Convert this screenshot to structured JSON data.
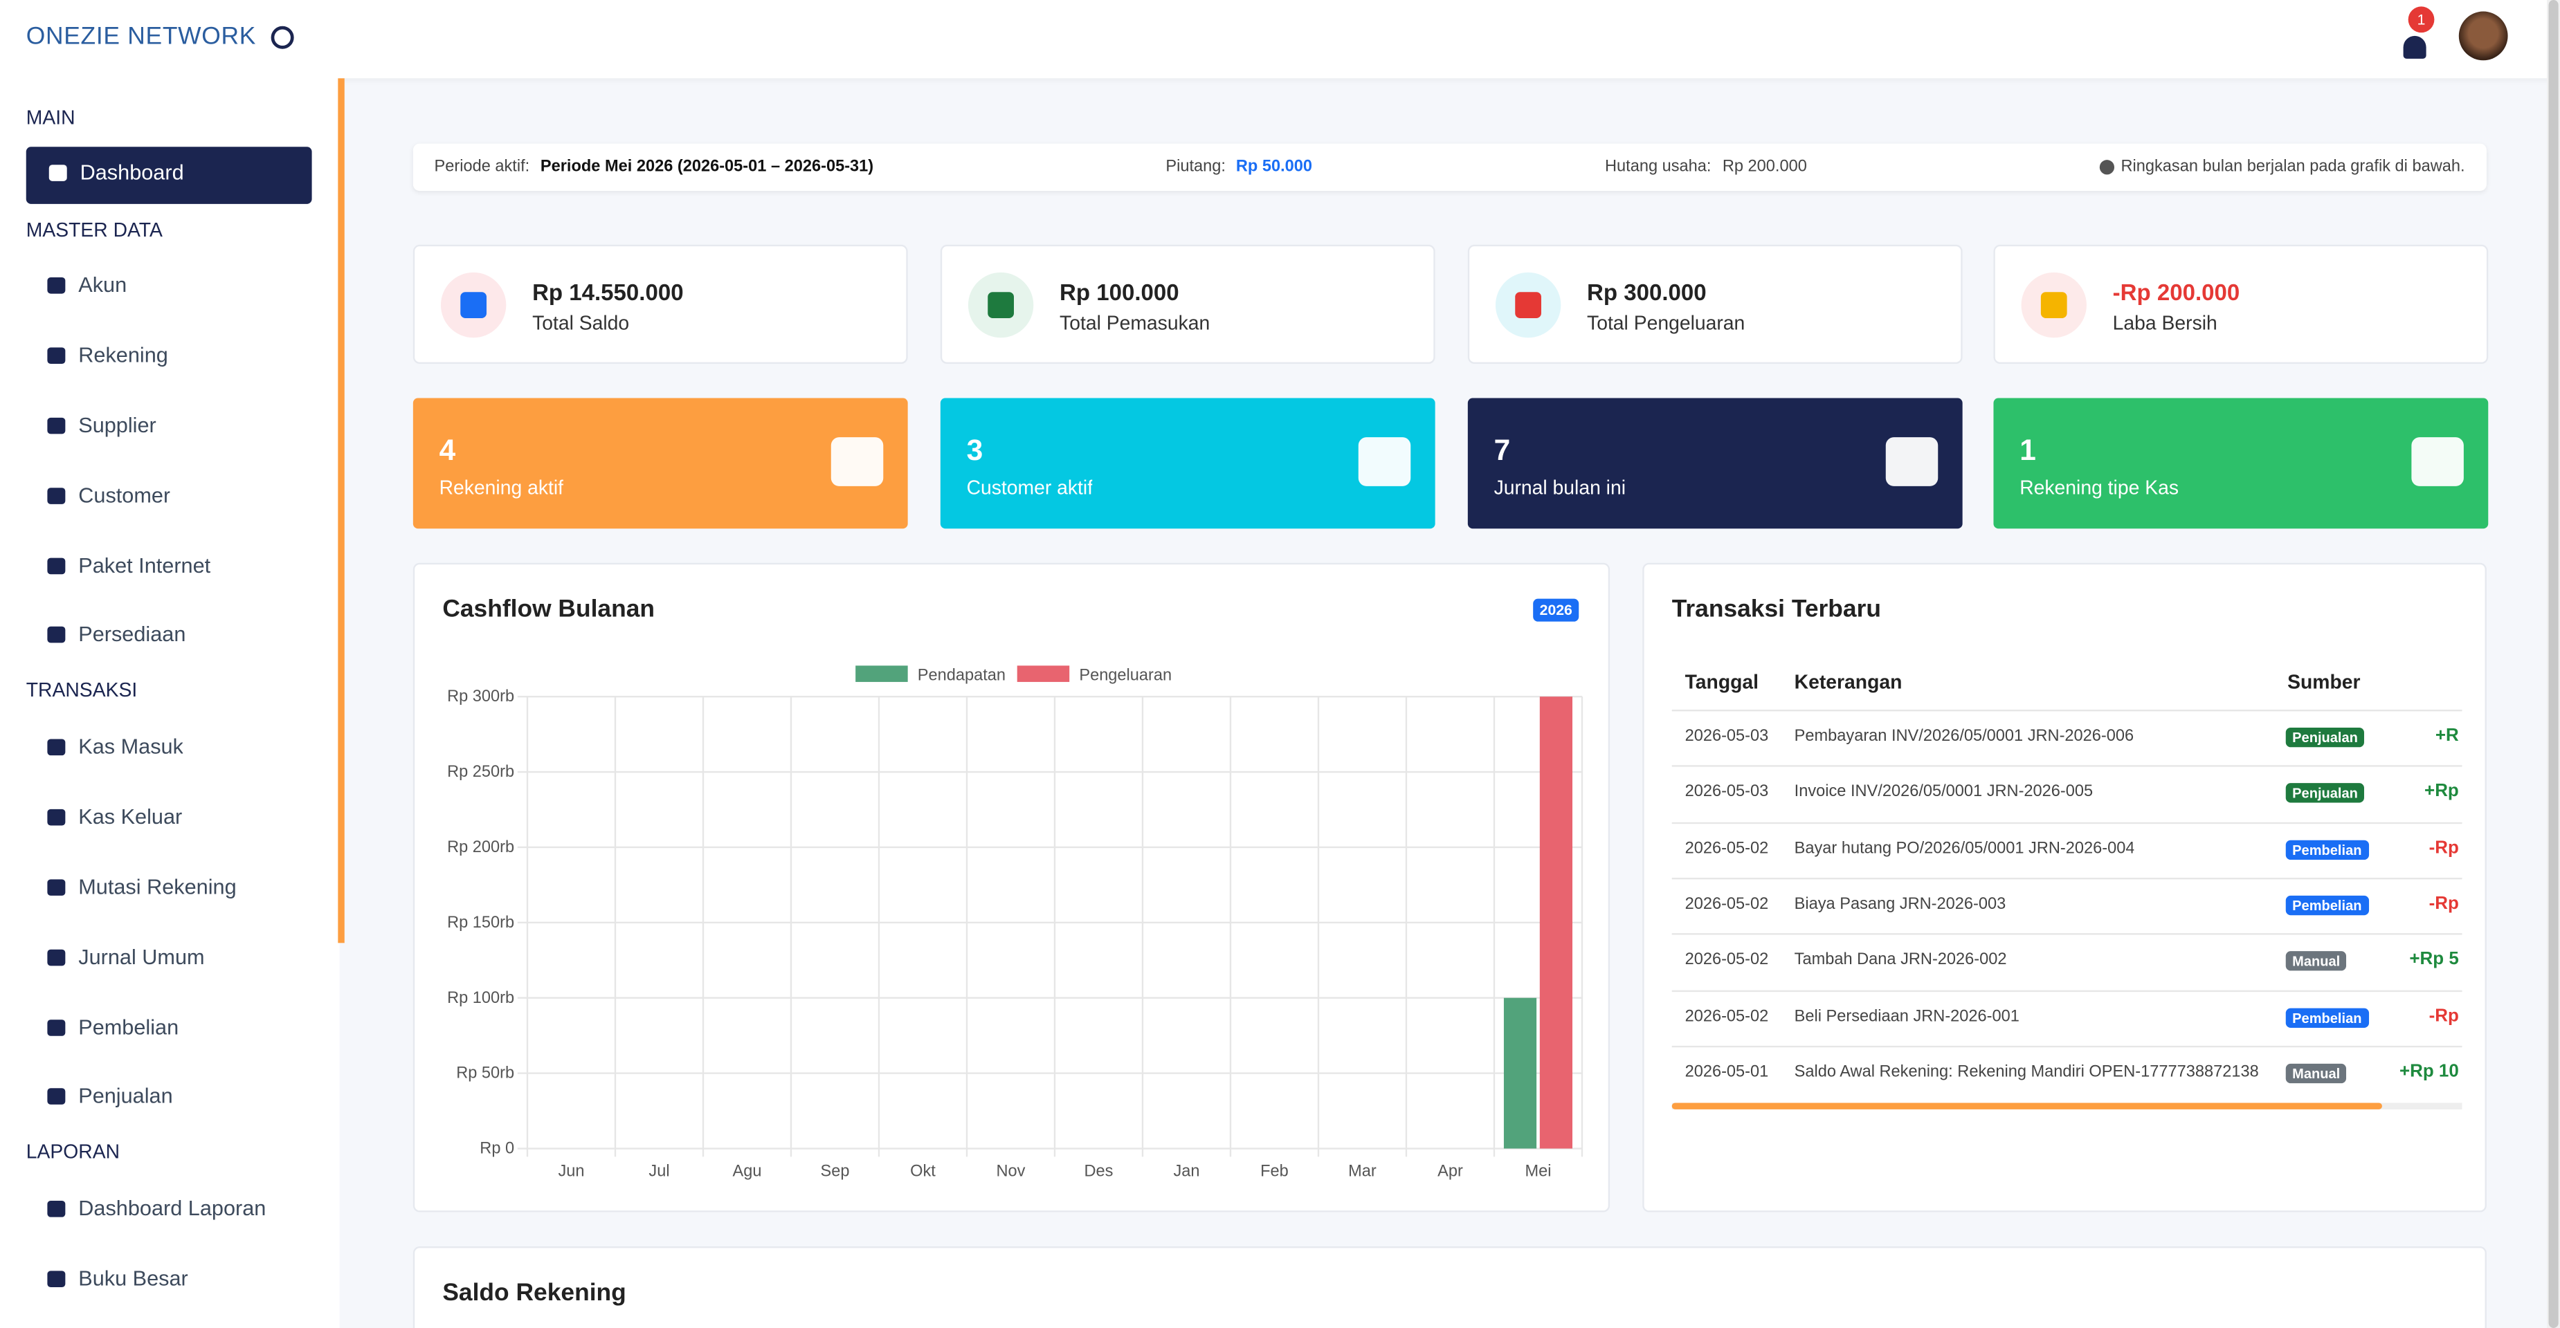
{
  "header": {
    "brand": "ONEZIE NETWORK",
    "notification_count": 1
  },
  "sidebar": {
    "sections": [
      {
        "title": "MAIN",
        "items": [
          "Dashboard"
        ]
      },
      {
        "title": "MASTER DATA",
        "items": [
          "Akun",
          "Rekening",
          "Supplier",
          "Customer",
          "Paket Internet",
          "Persediaan"
        ]
      },
      {
        "title": "TRANSAKSI",
        "items": [
          "Kas Masuk",
          "Kas Keluar",
          "Mutasi Rekening",
          "Jurnal Umum",
          "Pembelian",
          "Penjualan"
        ]
      },
      {
        "title": "LAPORAN",
        "items": [
          "Dashboard Laporan",
          "Buku Besar"
        ]
      }
    ]
  },
  "info_bar": {
    "period_label": "Periode aktif:",
    "period": "Periode Mei 2026 (2026-05-01 – 2026-05-31)",
    "receivable_label": "Piutang:",
    "receivable": "Rp 50.000",
    "payable_label": "Hutang usaha:",
    "payable": "Rp 200.000",
    "note": "Ringkasan bulan berjalan pada grafik di bawah."
  },
  "summary_cards": [
    {
      "value": "Rp 14.550.000",
      "label": "Total Saldo"
    },
    {
      "value": "Rp 100.000",
      "label": "Total Pemasukan"
    },
    {
      "value": "Rp 300.000",
      "label": "Total Pengeluaran"
    },
    {
      "value": "-Rp 200.000",
      "label": "Laba Bersih"
    }
  ],
  "count_cards": [
    {
      "value": 4,
      "label": "Rekening aktif",
      "color": "#fd9e40"
    },
    {
      "value": 3,
      "label": "Customer aktif",
      "color": "#04c8e2"
    },
    {
      "value": 7,
      "label": "Jurnal bulan ini",
      "color": "#1b2550"
    },
    {
      "value": 1,
      "label": "Rekening tipe Kas",
      "color": "#2dc06a"
    }
  ],
  "chart_data": {
    "type": "bar",
    "title": "Cashflow Bulanan",
    "badge": "2026",
    "categories": [
      "Jun",
      "Jul",
      "Agu",
      "Sep",
      "Okt",
      "Nov",
      "Des",
      "Jan",
      "Feb",
      "Mar",
      "Apr",
      "Mei"
    ],
    "series": [
      {
        "name": "Pendapatan",
        "color": "#52a37b",
        "values": [
          0,
          0,
          0,
          0,
          0,
          0,
          0,
          0,
          0,
          0,
          0,
          100000
        ]
      },
      {
        "name": "Pengeluaran",
        "color": "#e8646f",
        "values": [
          0,
          0,
          0,
          0,
          0,
          0,
          0,
          0,
          0,
          0,
          0,
          300000
        ]
      }
    ],
    "ylim": [
      0,
      300000
    ],
    "yticks": [
      {
        "value": 0,
        "label": "Rp 0"
      },
      {
        "value": 50000,
        "label": "Rp 50rb"
      },
      {
        "value": 100000,
        "label": "Rp 100rb"
      },
      {
        "value": 150000,
        "label": "Rp 150rb"
      },
      {
        "value": 200000,
        "label": "Rp 200rb"
      },
      {
        "value": 250000,
        "label": "Rp 250rb"
      },
      {
        "value": 300000,
        "label": "Rp 300rb"
      }
    ],
    "grid": true,
    "legend": "top"
  },
  "transactions": {
    "title": "Transaksi Terbaru",
    "columns": [
      "Tanggal",
      "Keterangan",
      "Sumber"
    ],
    "rows": [
      [
        "2026-05-03",
        "Pembayaran INV/2026/05/0001 JRN-2026-006",
        "Penjualan",
        "+R"
      ],
      [
        "2026-05-03",
        "Invoice INV/2026/05/0001 JRN-2026-005",
        "Penjualan",
        "+Rp"
      ],
      [
        "2026-05-02",
        "Bayar hutang PO/2026/05/0001 JRN-2026-004",
        "Pembelian",
        "-Rp"
      ],
      [
        "2026-05-02",
        "Biaya Pasang JRN-2026-003",
        "Pembelian",
        "-Rp"
      ],
      [
        "2026-05-02",
        "Tambah Dana JRN-2026-002",
        "Manual",
        "+Rp 5"
      ],
      [
        "2026-05-02",
        "Beli Persediaan JRN-2026-001",
        "Pembelian",
        "-Rp"
      ],
      [
        "2026-05-01",
        "Saldo Awal Rekening: Rekening Mandiri OPEN-1777738872138",
        "Manual",
        "+Rp 10"
      ]
    ]
  },
  "saldo_rekening": {
    "title": "Saldo Rekening"
  }
}
